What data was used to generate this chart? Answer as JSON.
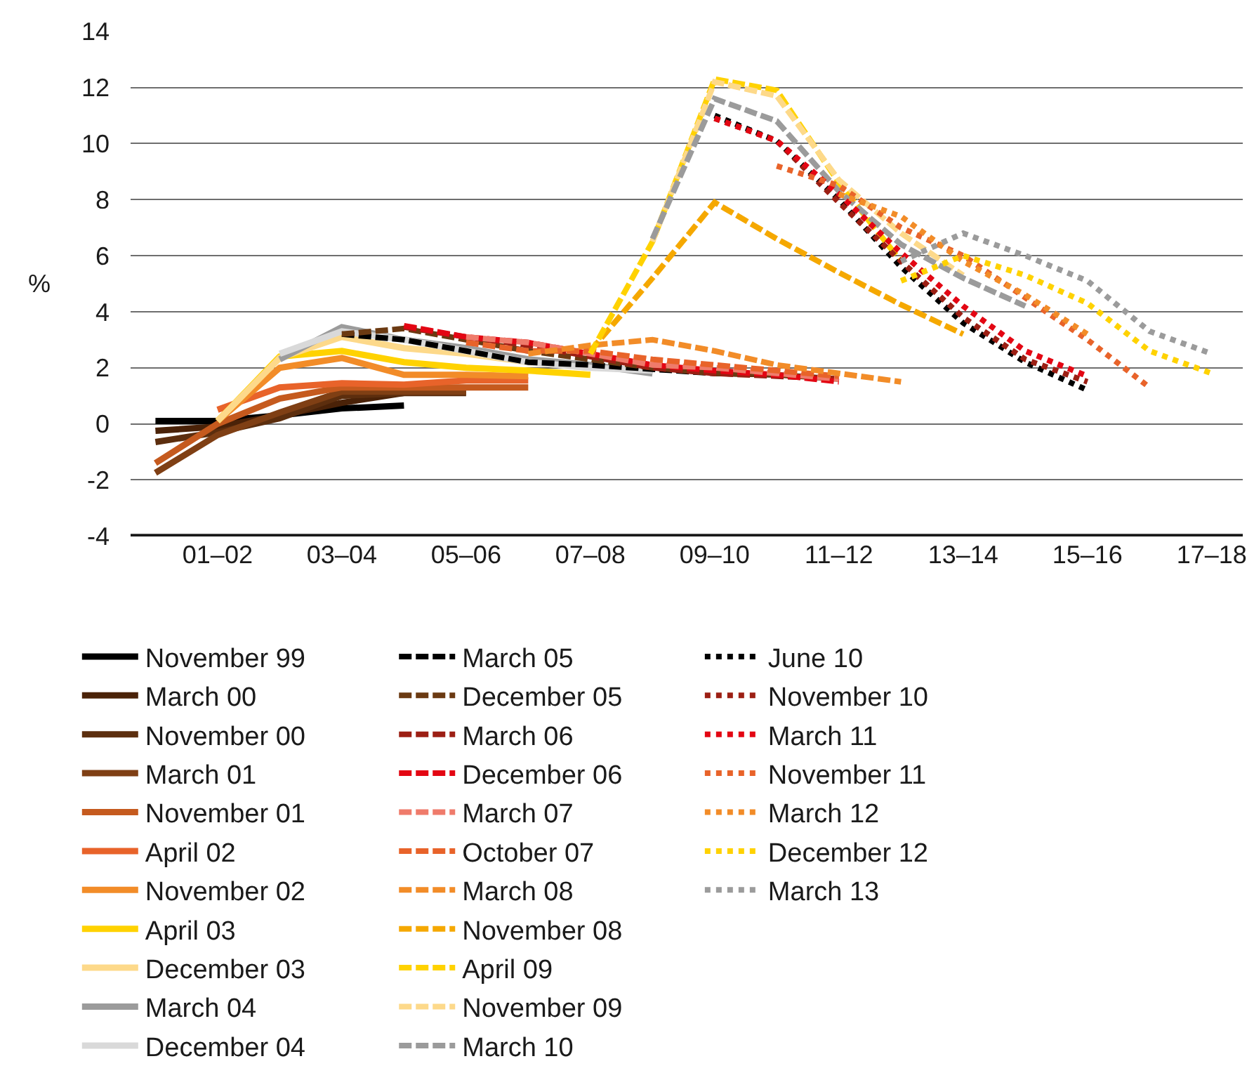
{
  "chart_data": {
    "type": "line",
    "ylabel": "%",
    "categories": [
      null,
      "01–02",
      null,
      "03–04",
      null,
      "05–06",
      null,
      "07–08",
      null,
      "09–10",
      null,
      "11–12",
      null,
      "13–14",
      null,
      "15–16",
      null,
      "17–18"
    ],
    "ylim": [
      -4,
      14
    ],
    "yticks": [
      -4,
      -2,
      0,
      2,
      4,
      6,
      8,
      10,
      12,
      14
    ],
    "grid": "y",
    "legend": "bottom",
    "marker": "none",
    "series": [
      {
        "name": "November 99",
        "color": "#000000",
        "line_style": "solid",
        "values": [
          0.1,
          0.1,
          0.3,
          0.55,
          0.65,
          null,
          null,
          null,
          null,
          null,
          null,
          null,
          null,
          null,
          null,
          null,
          null,
          null
        ]
      },
      {
        "name": "March 00",
        "color": "#4a2208",
        "line_style": "solid",
        "values": [
          -0.25,
          -0.1,
          0.3,
          0.75,
          1.1,
          null,
          null,
          null,
          null,
          null,
          null,
          null,
          null,
          null,
          null,
          null,
          null,
          null
        ]
      },
      {
        "name": "November 00",
        "color": "#5c2e0e",
        "line_style": "solid",
        "values": [
          -0.65,
          -0.3,
          0.2,
          1.0,
          1.1,
          1.1,
          null,
          null,
          null,
          null,
          null,
          null,
          null,
          null,
          null,
          null,
          null,
          null
        ]
      },
      {
        "name": "March 01",
        "color": "#7f3f14",
        "line_style": "solid",
        "values": [
          -1.75,
          -0.4,
          0.4,
          1.15,
          1.15,
          1.15,
          null,
          null,
          null,
          null,
          null,
          null,
          null,
          null,
          null,
          null,
          null,
          null
        ]
      },
      {
        "name": "November 01",
        "color": "#c55a1e",
        "line_style": "solid",
        "values": [
          -1.4,
          0.0,
          0.9,
          1.3,
          1.3,
          1.3,
          1.3,
          null,
          null,
          null,
          null,
          null,
          null,
          null,
          null,
          null,
          null,
          null
        ]
      },
      {
        "name": "April 02",
        "color": "#e8632a",
        "line_style": "solid",
        "values": [
          null,
          0.5,
          1.3,
          1.45,
          1.4,
          1.55,
          1.55,
          null,
          null,
          null,
          null,
          null,
          null,
          null,
          null,
          null,
          null,
          null
        ]
      },
      {
        "name": "November 02",
        "color": "#f28c28",
        "line_style": "solid",
        "values": [
          null,
          0.1,
          2.0,
          2.35,
          1.75,
          1.75,
          1.7,
          null,
          null,
          null,
          null,
          null,
          null,
          null,
          null,
          null,
          null,
          null
        ]
      },
      {
        "name": "April 03",
        "color": "#ffd200",
        "line_style": "solid",
        "values": [
          null,
          0.1,
          2.4,
          2.6,
          2.2,
          2.0,
          1.9,
          1.75,
          null,
          null,
          null,
          null,
          null,
          null,
          null,
          null,
          null,
          null
        ]
      },
      {
        "name": "December 03",
        "color": "#fdd98a",
        "line_style": "solid",
        "values": [
          null,
          0.1,
          2.35,
          3.1,
          2.7,
          2.5,
          2.2,
          2.0,
          null,
          null,
          null,
          null,
          null,
          null,
          null,
          null,
          null,
          null
        ]
      },
      {
        "name": "March 04",
        "color": "#9b9b9b",
        "line_style": "solid",
        "values": [
          null,
          null,
          2.3,
          3.45,
          3.0,
          2.7,
          2.3,
          2.1,
          1.8,
          null,
          null,
          null,
          null,
          null,
          null,
          null,
          null,
          null
        ]
      },
      {
        "name": "December 04",
        "color": "#d9d9d9",
        "line_style": "solid",
        "values": [
          null,
          null,
          2.5,
          3.3,
          3.0,
          2.6,
          2.2,
          2.0,
          1.9,
          null,
          null,
          null,
          null,
          null,
          null,
          null,
          null,
          null
        ]
      },
      {
        "name": "March 05",
        "color": "#000000",
        "line_style": "dashed",
        "values": [
          null,
          null,
          null,
          3.2,
          3.0,
          2.6,
          2.2,
          2.1,
          1.95,
          1.8,
          1.75,
          null,
          null,
          null,
          null,
          null,
          null,
          null
        ]
      },
      {
        "name": "December 05",
        "color": "#6b3a12",
        "line_style": "dashed",
        "values": [
          null,
          null,
          null,
          3.2,
          3.4,
          3.0,
          2.6,
          2.3,
          2.0,
          1.8,
          1.75,
          1.6,
          null,
          null,
          null,
          null,
          null,
          null
        ]
      },
      {
        "name": "March 06",
        "color": "#9c1f14",
        "line_style": "dashed",
        "values": [
          null,
          null,
          null,
          null,
          3.45,
          3.1,
          2.8,
          2.4,
          2.0,
          1.8,
          1.7,
          1.6,
          null,
          null,
          null,
          null,
          null,
          null
        ]
      },
      {
        "name": "December 06",
        "color": "#e30613",
        "line_style": "dashed",
        "values": [
          null,
          null,
          null,
          null,
          3.5,
          3.1,
          2.9,
          2.5,
          2.1,
          1.9,
          1.75,
          1.5,
          null,
          null,
          null,
          null,
          null,
          null
        ]
      },
      {
        "name": "March 07",
        "color": "#ef7b6b",
        "line_style": "dashed",
        "values": [
          null,
          null,
          null,
          null,
          null,
          3.1,
          2.9,
          2.5,
          2.1,
          2.0,
          1.8,
          1.6,
          null,
          null,
          null,
          null,
          null,
          null
        ]
      },
      {
        "name": "October 07",
        "color": "#e8632a",
        "line_style": "dashed",
        "values": [
          null,
          null,
          null,
          null,
          null,
          2.9,
          2.6,
          2.6,
          2.3,
          2.1,
          1.9,
          1.7,
          null,
          null,
          null,
          null,
          null,
          null
        ]
      },
      {
        "name": "March 08",
        "color": "#f28c28",
        "line_style": "dashed",
        "values": [
          null,
          null,
          null,
          null,
          null,
          null,
          2.5,
          2.8,
          3.0,
          2.6,
          2.1,
          1.8,
          1.5,
          null,
          null,
          null,
          null,
          null
        ]
      },
      {
        "name": "November 08",
        "color": "#f5a800",
        "line_style": "dashed",
        "values": [
          null,
          null,
          null,
          null,
          null,
          null,
          null,
          2.6,
          5.2,
          7.9,
          6.6,
          5.4,
          4.25,
          3.2,
          null,
          null,
          null,
          null
        ]
      },
      {
        "name": "April 09",
        "color": "#ffd200",
        "line_style": "dashed",
        "values": [
          null,
          null,
          null,
          null,
          null,
          null,
          null,
          2.5,
          6.5,
          12.3,
          11.9,
          8.6,
          5.8,
          null,
          null,
          null,
          null,
          null
        ]
      },
      {
        "name": "November 09",
        "color": "#fdd98a",
        "line_style": "dashed",
        "values": [
          null,
          null,
          null,
          null,
          null,
          null,
          null,
          null,
          6.5,
          12.2,
          11.7,
          8.7,
          6.8,
          5.3,
          null,
          null,
          null,
          null
        ]
      },
      {
        "name": "March 10",
        "color": "#9b9b9b",
        "line_style": "dashed",
        "values": [
          null,
          null,
          null,
          null,
          null,
          null,
          null,
          null,
          6.6,
          11.6,
          10.8,
          8.3,
          6.4,
          5.2,
          4.2,
          null,
          null,
          null
        ]
      },
      {
        "name": "June 10",
        "color": "#000000",
        "line_style": "dotted",
        "values": [
          null,
          null,
          null,
          null,
          null,
          null,
          null,
          null,
          null,
          11.0,
          10.1,
          8.0,
          5.6,
          3.6,
          2.2,
          1.2,
          null,
          null
        ]
      },
      {
        "name": "November 10",
        "color": "#9c1f14",
        "line_style": "dotted",
        "values": [
          null,
          null,
          null,
          null,
          null,
          null,
          null,
          null,
          null,
          10.9,
          10.1,
          7.9,
          5.8,
          3.8,
          2.3,
          1.5,
          null,
          null
        ]
      },
      {
        "name": "March 11",
        "color": "#e30613",
        "line_style": "dotted",
        "values": [
          null,
          null,
          null,
          null,
          null,
          null,
          null,
          null,
          null,
          10.9,
          10.1,
          8.2,
          6.1,
          4.2,
          2.6,
          1.7,
          null,
          null
        ]
      },
      {
        "name": "November 11",
        "color": "#e8632a",
        "line_style": "dotted",
        "values": [
          null,
          null,
          null,
          null,
          null,
          null,
          null,
          null,
          null,
          null,
          9.2,
          8.5,
          7.0,
          6.0,
          4.5,
          3.0,
          1.3,
          null
        ]
      },
      {
        "name": "March 12",
        "color": "#f28c28",
        "line_style": "dotted",
        "values": [
          null,
          null,
          null,
          null,
          null,
          null,
          null,
          null,
          null,
          null,
          null,
          8.2,
          7.4,
          5.8,
          4.6,
          3.2,
          null,
          null
        ]
      },
      {
        "name": "December 12",
        "color": "#ffd200",
        "line_style": "dotted",
        "values": [
          null,
          null,
          null,
          null,
          null,
          null,
          null,
          null,
          null,
          null,
          null,
          null,
          5.1,
          6.0,
          5.3,
          4.3,
          2.6,
          1.8
        ]
      },
      {
        "name": "March 13",
        "color": "#9b9b9b",
        "line_style": "dotted",
        "values": [
          null,
          null,
          null,
          null,
          null,
          null,
          null,
          null,
          null,
          null,
          null,
          null,
          5.8,
          6.8,
          6.0,
          5.1,
          3.3,
          2.5
        ]
      }
    ]
  }
}
